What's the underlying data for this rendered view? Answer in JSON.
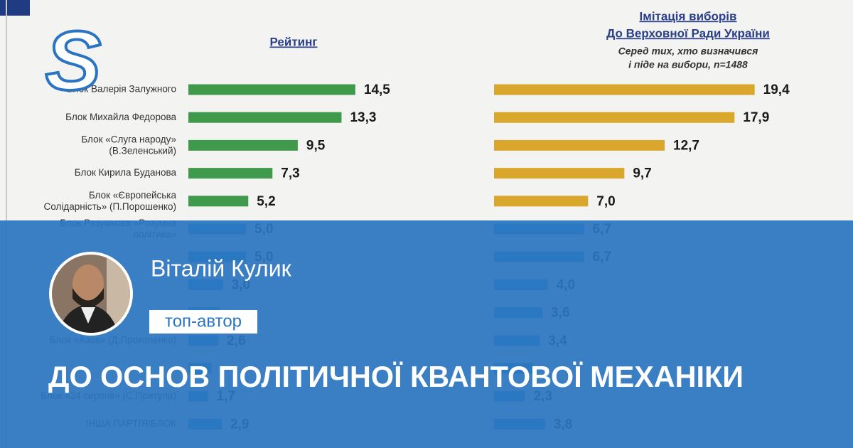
{
  "chart_data": [
    {
      "type": "bar",
      "orientation": "horizontal",
      "title": "Рейтинг",
      "categories": [
        "Блок Валерія Залужного",
        "Блок Михайла Федорова",
        "Блок «Слуга народу»\n(В.Зеленський)",
        "Блок Кирила Буданова",
        "Блок «Європейська\nСолідарність» (П.Порошенко)",
        "Блок Разумкова «Розумна\nполітика»",
        null,
        null,
        null,
        "Блок «Азов» (Д.Прокопенко)",
        null,
        "Блок «24 серпня» (С.Притула)",
        "ІНША ПАРТІЯ/БЛОК"
      ],
      "values": [
        14.5,
        13.3,
        9.5,
        7.3,
        5.2,
        5.0,
        5.0,
        3.0,
        2.7,
        2.6,
        2.0,
        1.7,
        2.9
      ],
      "value_labels": [
        "14,5",
        "13,3",
        "9,5",
        "7,3",
        "5,2",
        "5,0",
        "5,0",
        "3,0",
        null,
        "2,6",
        null,
        "1,7",
        "2,9"
      ],
      "colors": [
        "#3f9a4c",
        "#3f9a4c",
        "#3f9a4c",
        "#3f9a4c",
        "#3f9a4c",
        "#2ba4d4",
        "#2ba4d4",
        "#2ba4d4",
        "#2ba4d4",
        "#2ba4d4",
        "#2ba4d4",
        "#2ba4d4",
        "#2ba4d4"
      ],
      "xlim": [
        0,
        20
      ]
    },
    {
      "type": "bar",
      "orientation": "horizontal",
      "title": [
        "Імітація виборів",
        "До Верховної Ради України"
      ],
      "subtitle": [
        "Серед тих, хто визначився",
        "і піде на вибори, n=1488"
      ],
      "values": [
        19.4,
        17.9,
        12.7,
        9.7,
        7.0,
        6.7,
        6.7,
        4.0,
        3.6,
        3.4,
        2.9,
        2.3,
        3.8
      ],
      "value_labels": [
        "19,4",
        "17,9",
        "12,7",
        "9,7",
        "7,0",
        "6,7",
        "6,7",
        "4,0",
        "3,6",
        "3,4",
        null,
        "2,3",
        "3,8"
      ],
      "colors": [
        "#d9a72b",
        "#d9a72b",
        "#d9a72b",
        "#d9a72b",
        "#d9a72b",
        "#2ba4d4",
        "#2ba4d4",
        "#2ba4d4",
        "#2ba4d4",
        "#2ba4d4",
        "#2ba4d4",
        "#2ba4d4",
        "#2ba4d4"
      ],
      "xlim": [
        0,
        20
      ]
    }
  ],
  "logo": "S",
  "author": {
    "name": "Віталій Кулик",
    "badge": "топ-автор"
  },
  "headline": "ДО ОСНОВ ПОЛІТИЧНОЇ КВАНТОВОЇ МЕХАНІКИ"
}
